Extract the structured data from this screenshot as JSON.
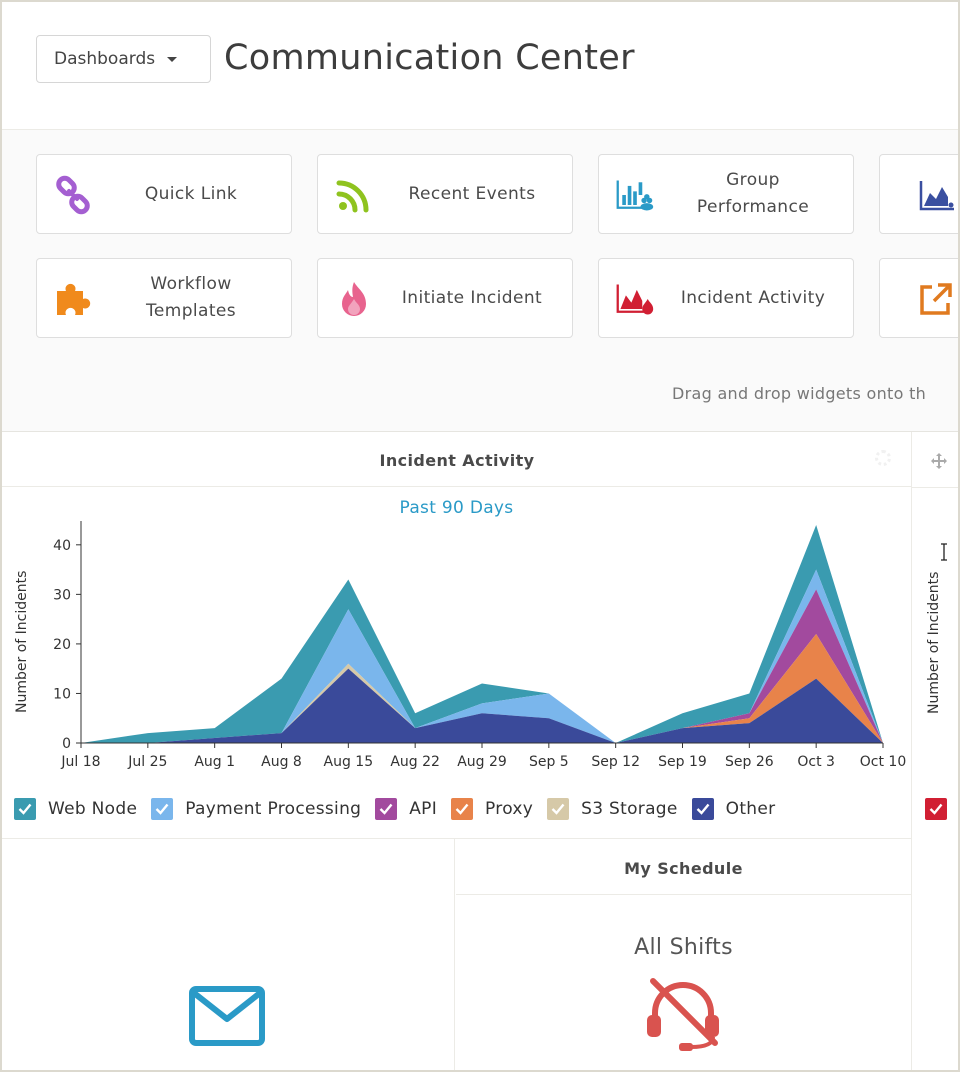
{
  "header": {
    "dashboards_button": "Dashboards",
    "page_title": "Communication Center"
  },
  "palette": {
    "tiles": [
      {
        "label": "Quick Link",
        "icon": "link-icon",
        "color": "#a45fd1"
      },
      {
        "label": "Recent Events",
        "icon": "rss-feed-icon",
        "color": "#8fc31f"
      },
      {
        "label": "Group Performance",
        "icon": "group-bar-chart-icon",
        "color": "#2a9ac7"
      },
      {
        "label": "",
        "icon": "area-chart-feed-icon",
        "color": "#3a4fa0"
      },
      {
        "label": "Workflow Templates",
        "icon": "puzzle-piece-icon",
        "color": "#f08a1c"
      },
      {
        "label": "Initiate Incident",
        "icon": "flame-icon",
        "color": "#e8638e"
      },
      {
        "label": "Incident Activity",
        "icon": "area-chart-fire-icon",
        "color": "#d11f33"
      },
      {
        "label": "",
        "icon": "external-link-icon",
        "color": "#e07a1f"
      }
    ],
    "drag_hint": "Drag and drop widgets onto th"
  },
  "incident_panel": {
    "title": "Incident Activity"
  },
  "chart_data": {
    "type": "area",
    "title": "",
    "subtitle": "Past 90 Days",
    "xlabel": "",
    "ylabel": "Number of Incidents",
    "stacked": true,
    "ylim": [
      0,
      44
    ],
    "yticks": [
      0,
      10,
      20,
      30,
      40
    ],
    "x": [
      "Jul 18",
      "Jul 25",
      "Aug 1",
      "Aug 8",
      "Aug 15",
      "Aug 22",
      "Aug 29",
      "Sep 5",
      "Sep 12",
      "Sep 19",
      "Sep 26",
      "Oct 3",
      "Oct 10"
    ],
    "series": [
      {
        "name": "Other",
        "color": "#3a4a9a",
        "values": [
          0,
          0,
          1,
          2,
          15,
          3,
          6,
          5,
          0,
          3,
          4,
          13,
          0
        ]
      },
      {
        "name": "S3 Storage",
        "color": "#d6c9a8",
        "values": [
          0,
          0,
          0,
          0,
          1,
          0,
          0,
          0,
          0,
          0,
          0,
          0,
          0
        ]
      },
      {
        "name": "Proxy",
        "color": "#e8834a",
        "values": [
          0,
          0,
          0,
          0,
          0,
          0,
          0,
          0,
          0,
          0,
          1,
          9,
          0
        ]
      },
      {
        "name": "API",
        "color": "#a24a9e",
        "values": [
          0,
          0,
          0,
          0,
          0,
          0,
          0,
          0,
          0,
          0,
          1,
          9,
          0
        ]
      },
      {
        "name": "Payment Processing",
        "color": "#7ab6ec",
        "values": [
          0,
          0,
          0,
          0,
          11,
          0,
          2,
          5,
          0,
          0,
          0,
          4,
          0
        ]
      },
      {
        "name": "Web Node",
        "color": "#3a9bb0",
        "values": [
          0,
          2,
          2,
          11,
          6,
          3,
          4,
          0,
          0,
          3,
          4,
          9,
          0
        ]
      }
    ],
    "legend": {
      "placement": "bottom"
    }
  },
  "legend_order": [
    {
      "name": "Web Node",
      "color": "#3a9bb0"
    },
    {
      "name": "Payment Processing",
      "color": "#7ab6ec"
    },
    {
      "name": "API",
      "color": "#a24a9e"
    },
    {
      "name": "Proxy",
      "color": "#e8834a"
    },
    {
      "name": "S3 Storage",
      "color": "#d6c9a8"
    },
    {
      "name": "Other",
      "color": "#3a4a9a"
    }
  ],
  "right_panel": {
    "ylabel": "Number of Incidents",
    "legend_color": "#d11f33"
  },
  "schedule": {
    "title": "My Schedule",
    "filter_label": "All Shifts"
  },
  "icons": {
    "mail": "mail-icon",
    "headset_off": "headset-off-icon",
    "move": "move-icon"
  },
  "colors": {
    "accent_blue": "#2a9ac7",
    "alert_red": "#d9534f"
  }
}
